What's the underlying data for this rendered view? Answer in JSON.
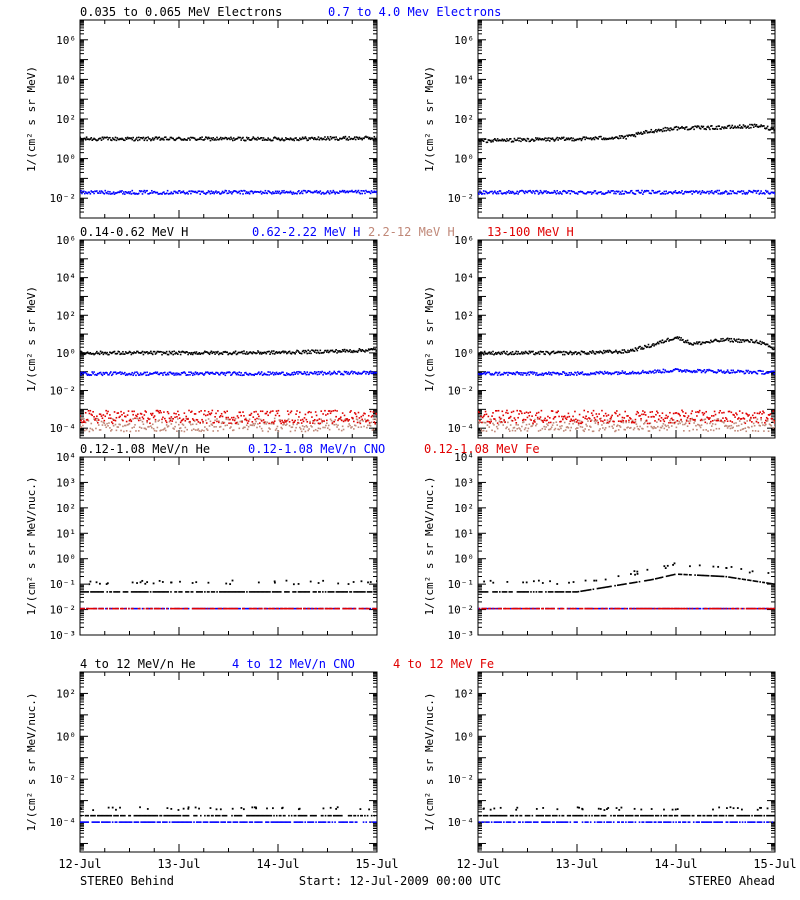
{
  "figure": {
    "footer_left": "STEREO Behind",
    "footer_center": "Start: 12-Jul-2009 00:00 UTC",
    "footer_right": "STEREO Ahead",
    "x_ticks": [
      "12-Jul",
      "13-Jul",
      "14-Jul",
      "15-Jul"
    ]
  },
  "rows": [
    {
      "legends": [
        {
          "text": "0.035 to 0.065 MeV Electrons",
          "color": "#000000"
        },
        {
          "text": "0.7 to 4.0 Mev Electrons",
          "color": "#0000ff"
        }
      ],
      "ylabel": "1/(cm² s sr MeV)",
      "y_ticks": [
        "10⁻²",
        "10⁰",
        "10²",
        "10⁴",
        "10⁶"
      ]
    },
    {
      "legends": [
        {
          "text": "0.14-0.62 MeV H",
          "color": "#000000"
        },
        {
          "text": "0.62-2.22 MeV H",
          "color": "#0000ff"
        },
        {
          "text": "2.2-12 MeV H",
          "color": "#c08878"
        },
        {
          "text": "13-100 MeV H",
          "color": "#e00000"
        }
      ],
      "ylabel": "1/(cm² s sr MeV)",
      "y_ticks": [
        "10⁻⁴",
        "10⁻²",
        "10⁰",
        "10²",
        "10⁴",
        "10⁶"
      ]
    },
    {
      "legends": [
        {
          "text": "0.12-1.08 MeV/n He",
          "color": "#000000"
        },
        {
          "text": "0.12-1.08 MeV/n CNO",
          "color": "#0000ff"
        },
        {
          "text": "0.12-1.08 MeV Fe",
          "color": "#e00000"
        }
      ],
      "ylabel": "1/(cm² s sr MeV/nuc.)",
      "y_ticks": [
        "10⁻³",
        "10⁻²",
        "10⁻¹",
        "10⁰",
        "10¹",
        "10²",
        "10³",
        "10⁴"
      ]
    },
    {
      "legends": [
        {
          "text": "4 to 12 MeV/n He",
          "color": "#000000"
        },
        {
          "text": "4 to 12 MeV/n CNO",
          "color": "#0000ff"
        },
        {
          "text": "4 to 12 MeV Fe",
          "color": "#e00000"
        }
      ],
      "ylabel": "1/(cm² s sr MeV/nuc.)",
      "y_ticks": [
        "10⁻⁴",
        "10⁻²",
        "10⁰",
        "10²"
      ]
    }
  ],
  "chart_data": [
    {
      "type": "scatter",
      "panel": "row1-behind",
      "y_scale": "log",
      "ylim": [
        0.001,
        10000000
      ],
      "xlim": [
        "12-Jul",
        "15-Jul"
      ],
      "series": [
        {
          "name": "0.035 to 0.065 MeV Electrons",
          "color": "#000000",
          "x": [
            "12-Jul",
            "13-Jul",
            "14-Jul",
            "15-Jul"
          ],
          "y": [
            10,
            10,
            10,
            11
          ]
        },
        {
          "name": "0.7 to 4.0 Mev Electrons",
          "color": "#0000ff",
          "x": [
            "12-Jul",
            "13-Jul",
            "14-Jul",
            "15-Jul"
          ],
          "y": [
            0.02,
            0.02,
            0.02,
            0.02
          ]
        }
      ]
    },
    {
      "type": "scatter",
      "panel": "row1-ahead",
      "y_scale": "log",
      "ylim": [
        0.001,
        10000000
      ],
      "xlim": [
        "12-Jul",
        "15-Jul"
      ],
      "series": [
        {
          "name": "0.035 to 0.065 MeV Electrons",
          "color": "#000000",
          "x": [
            "12-Jul",
            "12-Jul 12:00",
            "13-Jul",
            "13-Jul 12:00",
            "13-Jul 18:00",
            "14-Jul",
            "14-Jul 12:00",
            "14-Jul 20:00",
            "15-Jul"
          ],
          "y": [
            8,
            9,
            10,
            12,
            25,
            35,
            38,
            45,
            30
          ]
        },
        {
          "name": "0.7 to 4.0 Mev Electrons",
          "color": "#0000ff",
          "x": [
            "12-Jul",
            "13-Jul",
            "14-Jul",
            "15-Jul"
          ],
          "y": [
            0.02,
            0.02,
            0.02,
            0.02
          ]
        }
      ]
    },
    {
      "type": "scatter",
      "panel": "row2-behind",
      "y_scale": "log",
      "ylim": [
        3e-05,
        1000000
      ],
      "xlim": [
        "12-Jul",
        "15-Jul"
      ],
      "series": [
        {
          "name": "0.14-0.62 MeV H",
          "color": "#000000",
          "x": [
            "12-Jul",
            "13-Jul",
            "14-Jul",
            "14-Jul 18:00",
            "15-Jul"
          ],
          "y": [
            1.0,
            1.0,
            1.05,
            1.3,
            1.5
          ]
        },
        {
          "name": "0.62-2.22 MeV H",
          "color": "#0000ff",
          "x": [
            "12-Jul",
            "13-Jul",
            "14-Jul",
            "15-Jul"
          ],
          "y": [
            0.08,
            0.08,
            0.08,
            0.09
          ]
        },
        {
          "name": "2.2-12 MeV H",
          "color": "#c08878",
          "x": [
            "12-Jul",
            "13-Jul",
            "14-Jul",
            "15-Jul"
          ],
          "y": [
            0.00015,
            0.00015,
            0.00015,
            0.00015
          ]
        },
        {
          "name": "13-100 MeV H",
          "color": "#e00000",
          "x": [
            "12-Jul",
            "13-Jul",
            "14-Jul",
            "15-Jul"
          ],
          "y": [
            0.0004,
            0.0004,
            0.0004,
            0.0004
          ]
        }
      ]
    },
    {
      "type": "scatter",
      "panel": "row2-ahead",
      "y_scale": "log",
      "ylim": [
        3e-05,
        1000000
      ],
      "xlim": [
        "12-Jul",
        "15-Jul"
      ],
      "series": [
        {
          "name": "0.14-0.62 MeV H",
          "color": "#000000",
          "x": [
            "12-Jul",
            "13-Jul",
            "13-Jul 12:00",
            "13-Jul 18:00",
            "14-Jul",
            "14-Jul 04:00",
            "14-Jul 12:00",
            "14-Jul 20:00",
            "15-Jul"
          ],
          "y": [
            1.0,
            1.0,
            1.2,
            2.5,
            7,
            3,
            5,
            4,
            1.5
          ]
        },
        {
          "name": "0.62-2.22 MeV H",
          "color": "#0000ff",
          "x": [
            "12-Jul",
            "13-Jul",
            "13-Jul 18:00",
            "14-Jul",
            "15-Jul"
          ],
          "y": [
            0.08,
            0.08,
            0.1,
            0.12,
            0.09
          ]
        },
        {
          "name": "2.2-12 MeV H",
          "color": "#c08878",
          "x": [
            "12-Jul",
            "13-Jul",
            "14-Jul",
            "15-Jul"
          ],
          "y": [
            0.00015,
            0.00015,
            0.00015,
            0.00015
          ]
        },
        {
          "name": "13-100 MeV H",
          "color": "#e00000",
          "x": [
            "12-Jul",
            "13-Jul",
            "14-Jul",
            "15-Jul"
          ],
          "y": [
            0.0004,
            0.0004,
            0.0004,
            0.0004
          ]
        }
      ]
    },
    {
      "type": "scatter",
      "panel": "row3-behind",
      "y_scale": "log",
      "ylim": [
        0.001,
        10000
      ],
      "xlim": [
        "12-Jul",
        "15-Jul"
      ],
      "series": [
        {
          "name": "0.12-1.08 MeV/n He",
          "color": "#000000",
          "x": [
            "12-Jul",
            "13-Jul",
            "14-Jul",
            "15-Jul"
          ],
          "y": [
            0.05,
            0.05,
            0.05,
            0.05
          ]
        },
        {
          "name": "0.12-1.08 MeV/n CNO",
          "color": "#0000ff",
          "x": [
            "12-Jul",
            "13-Jul",
            "14-Jul",
            "15-Jul"
          ],
          "y": [
            0.011,
            0.011,
            0.011,
            0.011
          ]
        },
        {
          "name": "0.12-1.08 MeV Fe",
          "color": "#e00000",
          "x": [
            "12-Jul",
            "13-Jul",
            "14-Jul",
            "15-Jul"
          ],
          "y": [
            0.011,
            0.011,
            0.011,
            0.011
          ]
        }
      ]
    },
    {
      "type": "scatter",
      "panel": "row3-ahead",
      "y_scale": "log",
      "ylim": [
        0.001,
        10000
      ],
      "xlim": [
        "12-Jul",
        "15-Jul"
      ],
      "series": [
        {
          "name": "0.12-1.08 MeV/n He",
          "color": "#000000",
          "x": [
            "12-Jul",
            "13-Jul",
            "13-Jul 18:00",
            "14-Jul",
            "14-Jul 12:00",
            "15-Jul"
          ],
          "y": [
            0.05,
            0.05,
            0.15,
            0.25,
            0.2,
            0.1
          ]
        },
        {
          "name": "0.12-1.08 MeV/n CNO",
          "color": "#0000ff",
          "x": [
            "12-Jul",
            "13-Jul",
            "14-Jul",
            "15-Jul"
          ],
          "y": [
            0.011,
            0.011,
            0.011,
            0.011
          ]
        },
        {
          "name": "0.12-1.08 MeV Fe",
          "color": "#e00000",
          "x": [
            "12-Jul",
            "13-Jul",
            "14-Jul",
            "15-Jul"
          ],
          "y": [
            0.011,
            0.011,
            0.011,
            0.011
          ]
        }
      ]
    },
    {
      "type": "scatter",
      "panel": "row4-behind",
      "y_scale": "log",
      "ylim": [
        4e-06,
        1000
      ],
      "xlim": [
        "12-Jul",
        "15-Jul"
      ],
      "series": [
        {
          "name": "4 to 12 MeV/n He",
          "color": "#000000",
          "x": [
            "12-Jul",
            "13-Jul",
            "14-Jul",
            "15-Jul"
          ],
          "y": [
            0.0002,
            0.0002,
            0.0002,
            0.0002
          ]
        },
        {
          "name": "4 to 12 MeV/n CNO",
          "color": "#0000ff",
          "x": [
            "12-Jul",
            "13-Jul",
            "14-Jul",
            "15-Jul"
          ],
          "y": [
            0.0001,
            0.0001,
            0.0001,
            0.0001
          ]
        },
        {
          "name": "4 to 12 MeV Fe",
          "color": "#e00000",
          "x": [],
          "y": []
        }
      ]
    },
    {
      "type": "scatter",
      "panel": "row4-ahead",
      "y_scale": "log",
      "ylim": [
        4e-06,
        1000
      ],
      "xlim": [
        "12-Jul",
        "15-Jul"
      ],
      "series": [
        {
          "name": "4 to 12 MeV/n He",
          "color": "#000000",
          "x": [
            "12-Jul",
            "13-Jul",
            "14-Jul",
            "15-Jul"
          ],
          "y": [
            0.0002,
            0.0002,
            0.0002,
            0.0002
          ]
        },
        {
          "name": "4 to 12 MeV/n CNO",
          "color": "#0000ff",
          "x": [
            "12-Jul",
            "13-Jul",
            "14-Jul",
            "15-Jul"
          ],
          "y": [
            0.0001,
            0.0001,
            0.0001,
            0.0001
          ]
        },
        {
          "name": "4 to 12 MeV Fe",
          "color": "#e00000",
          "x": [],
          "y": []
        }
      ]
    }
  ]
}
